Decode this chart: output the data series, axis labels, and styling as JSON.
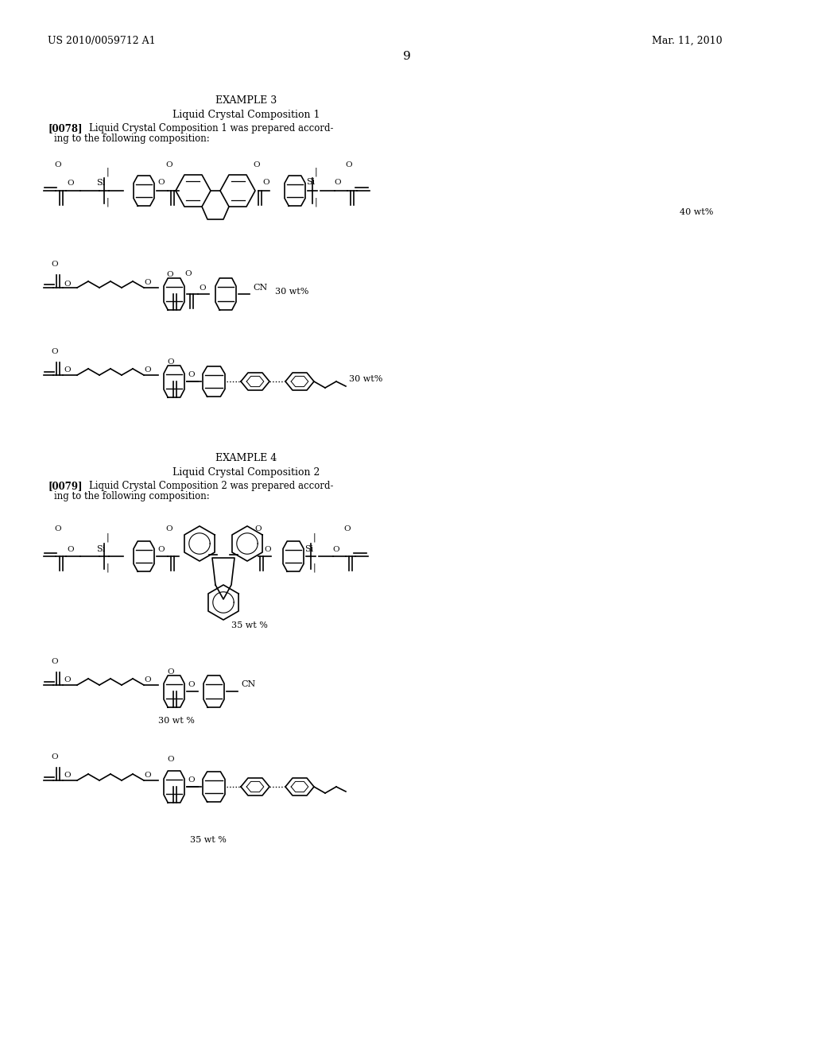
{
  "page_number": "9",
  "patent_number": "US 2010/0059712 A1",
  "patent_date": "Mar. 11, 2010",
  "example3_title": "EXAMPLE 3",
  "example3_subtitle": "Liquid Crystal Composition 1",
  "example3_text": "[0078]   Liquid Crystal Composition 1 was prepared according to the following composition:",
  "example4_title": "EXAMPLE 4",
  "example4_subtitle": "Liquid Crystal Composition 2",
  "example4_text": "[0079]   Liquid Crystal Composition 2 was prepared according to the following composition:",
  "bg_color": "#ffffff",
  "text_color": "#000000",
  "line_color": "#000000",
  "wt_40": "40 wt%",
  "wt_30a": "30 wt%",
  "wt_30b": "30 wt%",
  "wt_35a": "35 wt %",
  "wt_30c": "30 wt %",
  "wt_35b": "35 wt %"
}
